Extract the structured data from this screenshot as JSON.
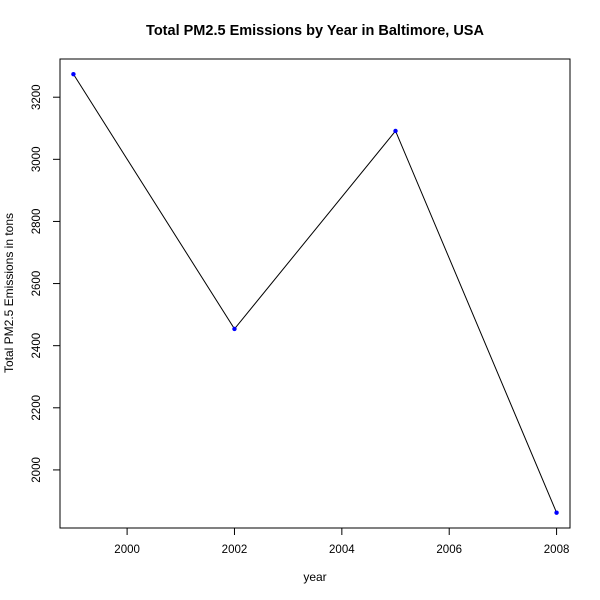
{
  "chart_data": {
    "type": "line",
    "title": "Total PM2.5 Emissions by Year in Baltimore, USA",
    "xlabel": "year",
    "ylabel": "Total PM2.5 Emissions in tons",
    "x": [
      1999,
      2002,
      2005,
      2008
    ],
    "series": [
      {
        "values": [
          3274.18,
          2453.92,
          3091.35,
          1862.28
        ]
      }
    ],
    "xlim": [
      1998.75,
      2008.25
    ],
    "ylim": [
      1813,
      3323
    ],
    "xticks": [
      "2000",
      "2002",
      "2004",
      "2006",
      "2008"
    ],
    "yticks": [
      "2000",
      "2200",
      "2400",
      "2600",
      "2800",
      "3000",
      "3200"
    ],
    "grid": false,
    "legend": "none",
    "line_color": "#000000",
    "point_color": "#0000ff"
  }
}
